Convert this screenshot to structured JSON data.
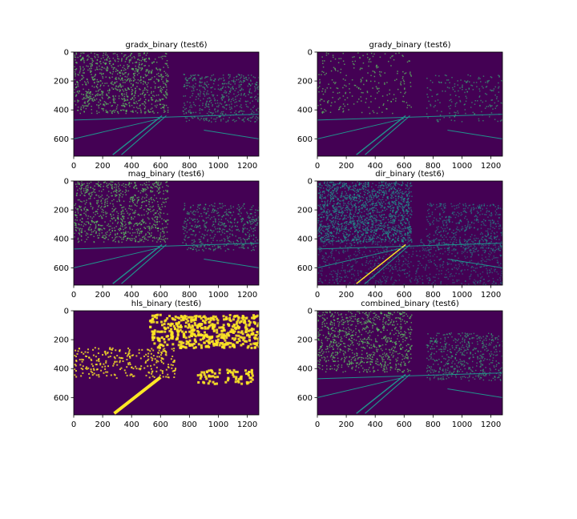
{
  "chart_data": [
    {
      "type": "heatmap",
      "title": "gradx_binary (test6)",
      "x_ticks": [
        0,
        200,
        400,
        600,
        800,
        1000,
        1200
      ],
      "y_ticks": [
        0,
        200,
        400,
        600
      ],
      "xlim": [
        0,
        1280
      ],
      "ylim": [
        720,
        0
      ],
      "colormap": "viridis",
      "colors": {
        "background": "#440154",
        "foreground": "#fde725",
        "mid": "#21918c"
      }
    },
    {
      "type": "heatmap",
      "title": "grady_binary (test6)",
      "x_ticks": [
        0,
        200,
        400,
        600,
        800,
        1000,
        1200
      ],
      "y_ticks": [
        0,
        200,
        400,
        600
      ],
      "xlim": [
        0,
        1280
      ],
      "ylim": [
        720,
        0
      ],
      "colormap": "viridis",
      "colors": {
        "background": "#440154",
        "foreground": "#fde725",
        "mid": "#21918c"
      }
    },
    {
      "type": "heatmap",
      "title": "mag_binary (test6)",
      "x_ticks": [
        0,
        200,
        400,
        600,
        800,
        1000,
        1200
      ],
      "y_ticks": [
        0,
        200,
        400,
        600
      ],
      "xlim": [
        0,
        1280
      ],
      "ylim": [
        720,
        0
      ],
      "colormap": "viridis",
      "colors": {
        "background": "#440154",
        "foreground": "#fde725",
        "mid": "#21918c"
      }
    },
    {
      "type": "heatmap",
      "title": "dir_binary (test6)",
      "x_ticks": [
        0,
        200,
        400,
        600,
        800,
        1000,
        1200
      ],
      "y_ticks": [
        0,
        200,
        400,
        600
      ],
      "xlim": [
        0,
        1280
      ],
      "ylim": [
        720,
        0
      ],
      "colormap": "viridis",
      "colors": {
        "background": "#440154",
        "foreground": "#fde725",
        "mid": "#21918c"
      }
    },
    {
      "type": "heatmap",
      "title": "hls_binary (test6)",
      "x_ticks": [
        0,
        200,
        400,
        600,
        800,
        1000,
        1200
      ],
      "y_ticks": [
        0,
        200,
        400,
        600
      ],
      "xlim": [
        0,
        1280
      ],
      "ylim": [
        720,
        0
      ],
      "colormap": "viridis",
      "colors": {
        "background": "#440154",
        "foreground": "#fde725",
        "mid": "#21918c"
      }
    },
    {
      "type": "heatmap",
      "title": "combined_binary (test6)",
      "x_ticks": [
        0,
        200,
        400,
        600,
        800,
        1000,
        1200
      ],
      "y_ticks": [
        0,
        200,
        400,
        600
      ],
      "xlim": [
        0,
        1280
      ],
      "ylim": [
        720,
        0
      ],
      "colormap": "viridis",
      "colors": {
        "background": "#440154",
        "foreground": "#fde725",
        "mid": "#21918c"
      }
    }
  ]
}
